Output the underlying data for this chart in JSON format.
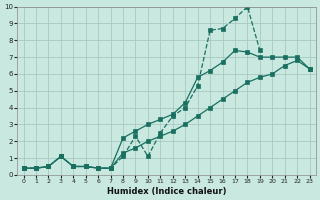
{
  "xlabel": "Humidex (Indice chaleur)",
  "xlim": [
    -0.5,
    23.5
  ],
  "ylim": [
    0,
    10
  ],
  "xticks": [
    0,
    1,
    2,
    3,
    4,
    5,
    6,
    7,
    8,
    9,
    10,
    11,
    12,
    13,
    14,
    15,
    16,
    17,
    18,
    19,
    20,
    21,
    22,
    23
  ],
  "yticks": [
    0,
    1,
    2,
    3,
    4,
    5,
    6,
    7,
    8,
    9,
    10
  ],
  "bg_color": "#c8e8e0",
  "grid_color": "#a8c8c0",
  "line_color": "#1a7060",
  "line1_dotted": {
    "x": [
      0,
      1,
      2,
      3,
      4,
      5,
      6,
      7,
      8,
      9,
      10,
      11,
      12,
      13,
      14,
      15,
      16,
      17,
      18,
      19,
      20,
      21,
      22,
      23
    ],
    "y": [
      0.4,
      0.4,
      0.5,
      1.1,
      0.5,
      0.5,
      0.4,
      0.4,
      1.1,
      2.3,
      1.1,
      2.5,
      3.5,
      4.0,
      5.3,
      8.6,
      8.7,
      9.3,
      10.0,
      7.4,
      null,
      null,
      null,
      null
    ]
  },
  "line2_solid_upper": {
    "x": [
      0,
      1,
      2,
      3,
      4,
      5,
      6,
      7,
      8,
      9,
      10,
      11,
      12,
      13,
      14,
      15,
      16,
      17,
      18,
      19,
      20,
      21,
      22,
      23
    ],
    "y": [
      0.4,
      0.4,
      0.5,
      1.1,
      0.5,
      0.5,
      0.4,
      0.4,
      2.2,
      2.6,
      3.0,
      3.3,
      3.6,
      4.3,
      5.8,
      6.2,
      6.7,
      7.4,
      7.3,
      7.0,
      7.0,
      7.0,
      7.0,
      6.3
    ]
  },
  "line3_solid_lower": {
    "x": [
      0,
      1,
      2,
      3,
      4,
      5,
      6,
      7,
      8,
      9,
      10,
      11,
      12,
      13,
      14,
      15,
      16,
      17,
      18,
      19,
      20,
      21,
      22,
      23
    ],
    "y": [
      0.4,
      0.4,
      0.5,
      1.1,
      0.5,
      0.5,
      0.4,
      0.4,
      1.3,
      1.6,
      2.0,
      2.3,
      2.6,
      3.0,
      3.5,
      4.0,
      4.5,
      5.0,
      5.5,
      5.8,
      6.0,
      6.5,
      6.8,
      6.3
    ]
  }
}
